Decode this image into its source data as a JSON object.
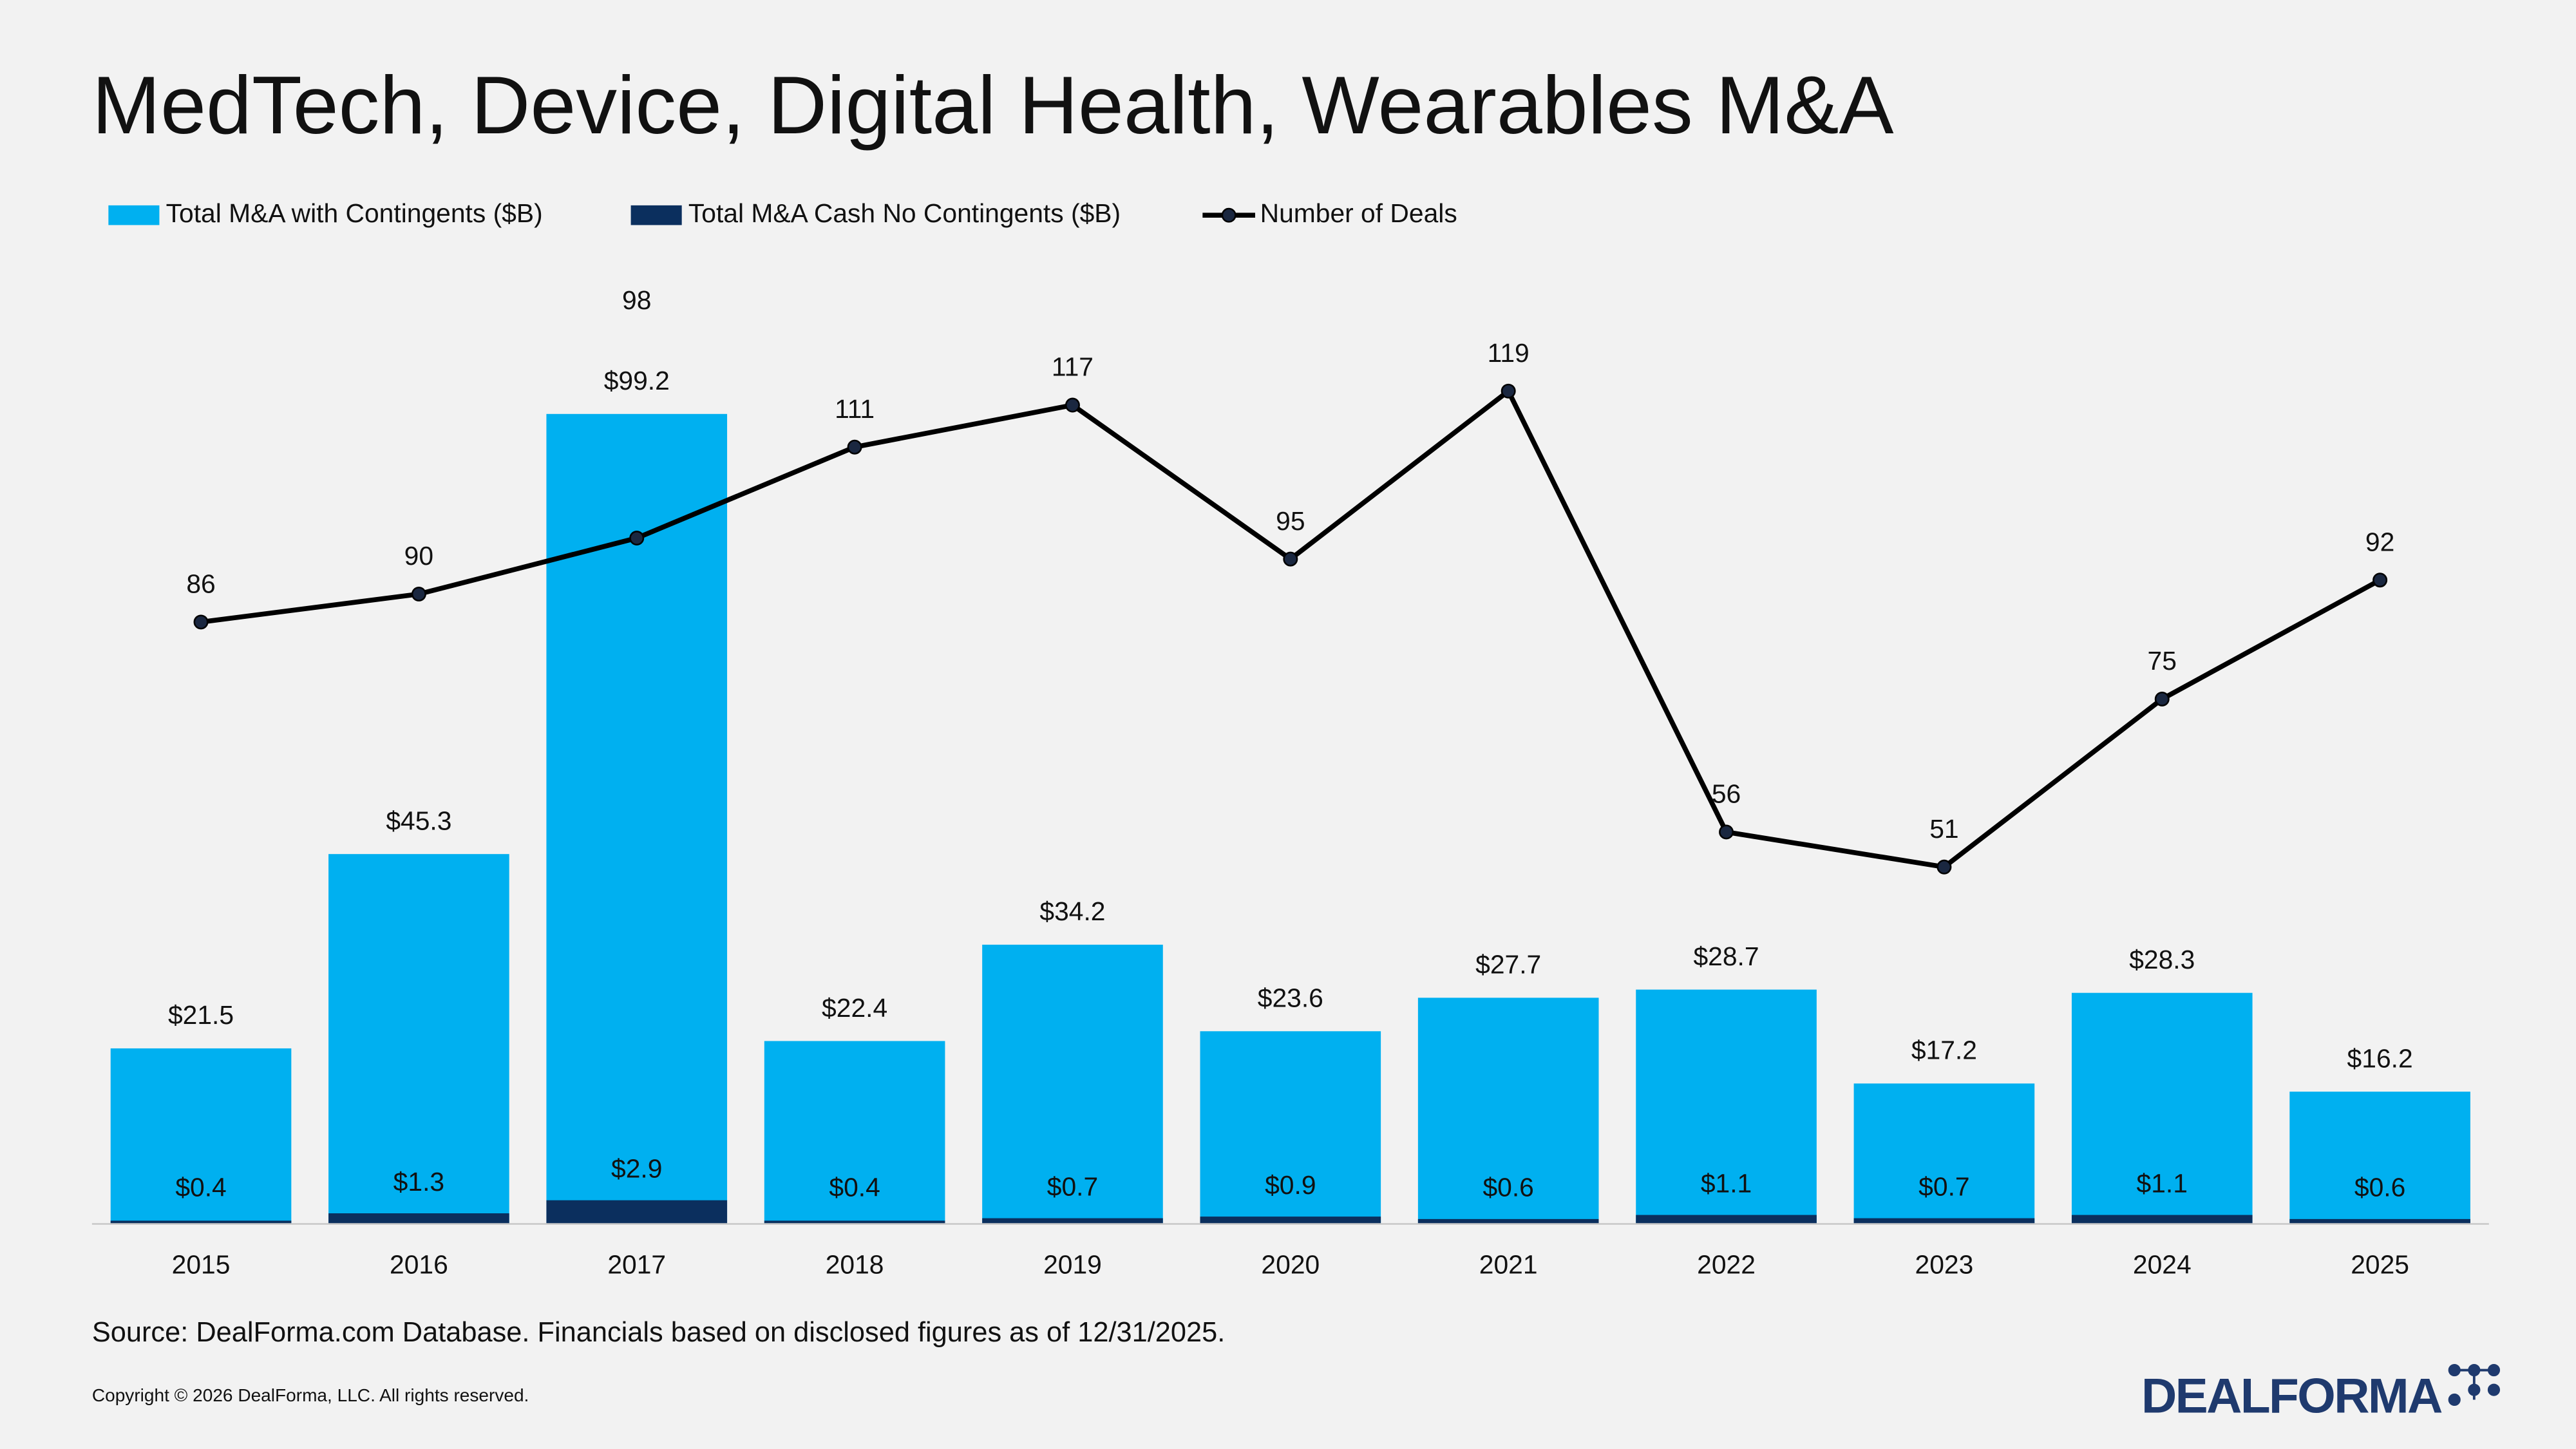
{
  "chart_data": {
    "type": "bar",
    "title": "MedTech, Device, Digital Health, Wearables M&A",
    "categories": [
      "2015",
      "2016",
      "2017",
      "2018",
      "2019",
      "2020",
      "2021",
      "2022",
      "2023",
      "2024",
      "2025"
    ],
    "series": [
      {
        "name": "Total M&A with Contingents ($B)",
        "color": "#00b0f0",
        "values": [
          21.5,
          45.3,
          99.2,
          22.4,
          34.2,
          23.6,
          27.7,
          28.7,
          17.2,
          28.3,
          16.2
        ],
        "value_labels": [
          "$21.5",
          "$45.3",
          "$99.2",
          "$22.4",
          "$34.2",
          "$23.6",
          "$27.7",
          "$28.7",
          "$17.2",
          "$28.3",
          "$16.2"
        ]
      },
      {
        "name": "Total M&A Cash No Contingents ($B)",
        "color": "#0b2f5e",
        "values": [
          0.4,
          1.3,
          2.9,
          0.4,
          0.7,
          0.9,
          0.6,
          1.1,
          0.7,
          1.1,
          0.6
        ],
        "value_labels": [
          "$0.4",
          "$1.3",
          "$2.9",
          "$0.4",
          "$0.7",
          "$0.9",
          "$0.6",
          "$1.1",
          "$0.7",
          "$1.1",
          "$0.6"
        ]
      },
      {
        "name": "Number of Deals",
        "color": "#000000",
        "type": "line",
        "axis": "y2",
        "values": [
          86,
          90,
          98,
          111,
          117,
          95,
          119,
          56,
          51,
          75,
          92
        ]
      }
    ],
    "ylim": [
      0,
      120
    ],
    "y2lim": [
      0,
      140
    ],
    "grid": false,
    "legend": "top",
    "source": "Source: DealForma.com Database. Financials based on disclosed figures as of 12/31/2025.",
    "copyright": "Copyright © 2026 DealForma, LLC. All rights reserved.",
    "logo": "DEALFORMA"
  }
}
